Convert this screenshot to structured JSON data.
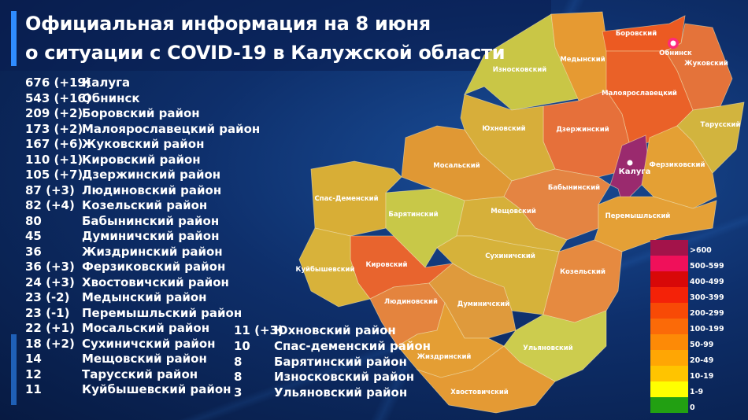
{
  "title": {
    "line1": "Официальная информация на 8 июня",
    "line2": "о ситуации с COVID-19 в Калужской области"
  },
  "list_left": [
    {
      "count": "676 (+19)",
      "name": "Калуга"
    },
    {
      "count": "543 (+16)",
      "name": "Обнинск"
    },
    {
      "count": "209 (+2)",
      "name": "Боровский район"
    },
    {
      "count": "173 (+2)",
      "name": "Малоярославецкий район"
    },
    {
      "count": "167 (+6)",
      "name": "Жуковский район"
    },
    {
      "count": "110 (+1)",
      "name": "Кировский район"
    },
    {
      "count": "105 (+7)",
      "name": "Дзержинский район"
    },
    {
      "count": "87 (+3)",
      "name": "Людиновский район"
    },
    {
      "count": "82 (+4)",
      "name": "Козельский район"
    },
    {
      "count": "80",
      "name": "Бабынинский район"
    },
    {
      "count": "45",
      "name": "Думиничский район"
    },
    {
      "count": "36",
      "name": "Жиздринский район"
    },
    {
      "count": "36 (+3)",
      "name": "Ферзиковский район"
    },
    {
      "count": "24 (+3)",
      "name": "Хвостовичский район"
    },
    {
      "count": "23 (-2)",
      "name": "Медынский район"
    },
    {
      "count": "23 (-1)",
      "name": "Перемышльский район"
    },
    {
      "count": "22 (+1)",
      "name": "Мосальский район"
    },
    {
      "count": "18 (+2)",
      "name": "Сухиничский район"
    },
    {
      "count": "14",
      "name": "Мещовский район"
    },
    {
      "count": "12",
      "name": "Тарусский район"
    },
    {
      "count": "11",
      "name": "Куйбышевский район"
    }
  ],
  "list_right": [
    {
      "count": "11 (+3)",
      "name": "Юхновский район"
    },
    {
      "count": "10",
      "name": "Спас-деменский район"
    },
    {
      "count": "8",
      "name": "Барятинский район"
    },
    {
      "count": "8",
      "name": "Износковский район"
    },
    {
      "count": "3",
      "name": "Ульяновский район"
    }
  ],
  "map": {
    "districts": [
      {
        "name": "Износковский",
        "color": "#c9c646"
      },
      {
        "name": "Медынский",
        "color": "#e69a32"
      },
      {
        "name": "Боровский",
        "color": "#ec5a22"
      },
      {
        "name": "Жуковский",
        "color": "#e4733a"
      },
      {
        "name": "Малоярославецкий",
        "color": "#ea6128"
      },
      {
        "name": "Тарусский",
        "color": "#d2b43e"
      },
      {
        "name": "Дзержинский",
        "color": "#e6703a"
      },
      {
        "name": "Калуга",
        "color": "#9a2a6e"
      },
      {
        "name": "Ферзиковский",
        "color": "#e4a034"
      },
      {
        "name": "Юхновский",
        "color": "#d7ae3a"
      },
      {
        "name": "Мосальский",
        "color": "#e09834"
      },
      {
        "name": "Спас-Деменский",
        "color": "#d8ae36"
      },
      {
        "name": "Барятинский",
        "color": "#c8c848"
      },
      {
        "name": "Бабынинский",
        "color": "#e48442"
      },
      {
        "name": "Перемышльский",
        "color": "#e4a036"
      },
      {
        "name": "Мещовский",
        "color": "#d6b03a"
      },
      {
        "name": "Кировский",
        "color": "#e8642e"
      },
      {
        "name": "Куйбышевский",
        "color": "#d8b23a"
      },
      {
        "name": "Сухиничский",
        "color": "#d6b23a"
      },
      {
        "name": "Козельский",
        "color": "#e68a40"
      },
      {
        "name": "Людиновский",
        "color": "#e4843e"
      },
      {
        "name": "Думиничский",
        "color": "#df9a3c"
      },
      {
        "name": "Ульяновский",
        "color": "#cccc4e"
      },
      {
        "name": "Жиздринский",
        "color": "#e49e34"
      },
      {
        "name": "Хвостовичский",
        "color": "#e49a34"
      }
    ],
    "cities": [
      {
        "name": "Обнинск",
        "color": "#ff2a7a"
      },
      {
        "name": "Калуга",
        "color": "#ffffff"
      }
    ]
  },
  "legend": [
    {
      "label": ">600",
      "color": "#a3134a"
    },
    {
      "label": "500-599",
      "color": "#f0105a"
    },
    {
      "label": "400-499",
      "color": "#d80808"
    },
    {
      "label": "300-399",
      "color": "#f42208"
    },
    {
      "label": "200-299",
      "color": "#f84a06"
    },
    {
      "label": "100-199",
      "color": "#fb6a08"
    },
    {
      "label": "50-99",
      "color": "#fd8a06"
    },
    {
      "label": "20-49",
      "color": "#ffa604"
    },
    {
      "label": "10-19",
      "color": "#ffc400"
    },
    {
      "label": "1-9",
      "color": "#ffff00"
    },
    {
      "label": "0",
      "color": "#22a012"
    }
  ]
}
